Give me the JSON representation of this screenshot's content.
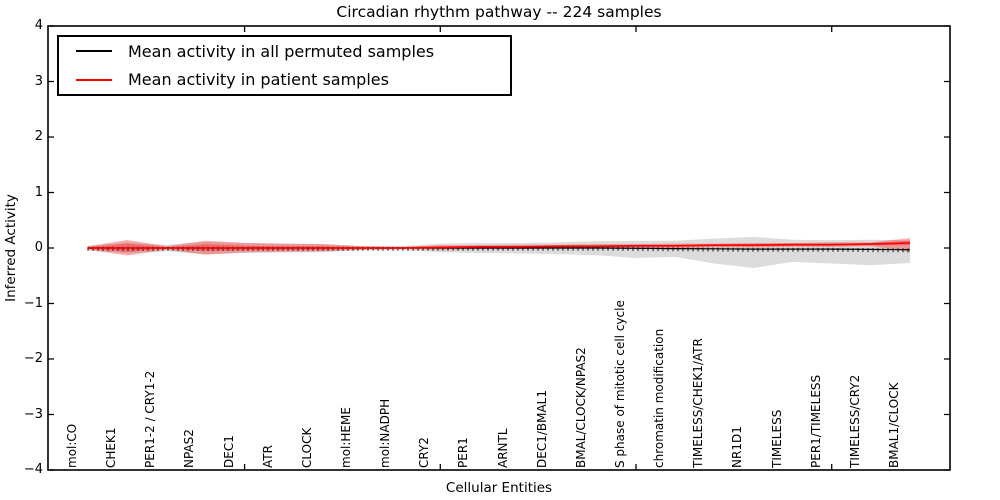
{
  "chart_data": {
    "type": "line",
    "title": "Circadian rhythm pathway -- 224 samples",
    "xlabel": "Cellular Entities",
    "ylabel": "Inferred Activity",
    "ylim": [
      -4,
      4
    ],
    "yticks": [
      4,
      3,
      2,
      1,
      0,
      -1,
      -2,
      -3,
      -4
    ],
    "yticklabels": [
      "4",
      "3",
      "2",
      "1",
      "0",
      "−1",
      "−2",
      "−3",
      "−4"
    ],
    "grid": false,
    "legend_position": "upper left",
    "x_major_tick_indices": [
      4,
      9,
      14,
      19
    ],
    "colors": {
      "frame": "#000000",
      "permuted_line": "#000000",
      "patient_line": "#ff0000",
      "permuted_band": "rgba(128,128,128,0.28)",
      "patient_band": "rgba(255,0,0,0.30)"
    },
    "categories": [
      "mol:CO",
      "CHEK1",
      "PER1-2 / CRY1-2",
      "NPAS2",
      "DEC1",
      "ATR",
      "CLOCK",
      "mol:HEME",
      "mol:NADPH",
      "CRY2",
      "PER1",
      "ARNTL",
      "DEC1/BMAL1",
      "BMAL/CLOCK/NPAS2",
      "S phase of mitotic cell cycle",
      "chromatin modification",
      "TIMELESS/CHEK1/ATR",
      "NR1D1",
      "TIMELESS",
      "PER1/TIMELESS",
      "TIMELESS/CRY2",
      "BMAL1/CLOCK"
    ],
    "series": [
      {
        "name": "Mean activity in all permuted samples",
        "color": "#000000",
        "values": [
          0,
          0,
          0,
          0,
          0,
          0,
          0,
          0,
          0,
          0,
          0,
          0,
          0,
          0,
          -0.005,
          -0.01,
          -0.015,
          -0.02,
          -0.02,
          -0.02,
          -0.025,
          -0.03
        ],
        "band_upper": [
          0.04,
          0.1,
          0.06,
          0.11,
          0.09,
          0.08,
          0.07,
          0.04,
          0.03,
          0.08,
          0.09,
          0.09,
          0.1,
          0.12,
          0.13,
          0.13,
          0.17,
          0.2,
          0.15,
          0.14,
          0.15,
          0.14
        ],
        "band_lower": [
          -0.04,
          -0.1,
          -0.06,
          -0.11,
          -0.09,
          -0.08,
          -0.08,
          -0.04,
          -0.03,
          -0.08,
          -0.09,
          -0.1,
          -0.11,
          -0.13,
          -0.18,
          -0.16,
          -0.28,
          -0.36,
          -0.25,
          -0.28,
          -0.31,
          -0.27
        ]
      },
      {
        "name": "Mean activity in patient samples",
        "color": "#ff0000",
        "values": [
          0,
          0,
          0,
          0,
          0,
          0,
          0,
          0,
          0,
          0.01,
          0.02,
          0.02,
          0.03,
          0.03,
          0.04,
          0.04,
          0.05,
          0.05,
          0.06,
          0.06,
          0.07,
          0.09
        ],
        "band_upper": [
          0.03,
          0.145,
          0.03,
          0.13,
          0.09,
          0.08,
          0.07,
          0.03,
          0.02,
          0.05,
          0.05,
          0.06,
          0.06,
          0.07,
          0.07,
          0.08,
          0.08,
          0.09,
          0.09,
          0.1,
          0.1,
          0.18
        ],
        "band_lower": [
          -0.03,
          -0.135,
          -0.03,
          -0.12,
          -0.08,
          -0.07,
          -0.06,
          -0.03,
          -0.02,
          -0.03,
          -0.02,
          -0.02,
          -0.01,
          -0.01,
          0.0,
          0.0,
          0.01,
          0.01,
          0.02,
          0.02,
          0.03,
          -0.07
        ],
        "inner_band_upper": [
          0.015,
          0.08,
          0.015,
          0.07,
          0.04,
          0.035,
          0.03,
          0.015,
          0.01,
          0.03,
          0.04,
          0.04,
          0.05,
          0.05,
          0.06,
          0.06,
          0.07,
          0.07,
          0.08,
          0.08,
          0.09,
          0.13
        ],
        "inner_band_lower": [
          -0.015,
          -0.07,
          -0.015,
          -0.06,
          -0.04,
          -0.035,
          -0.03,
          -0.015,
          -0.01,
          -0.01,
          0.0,
          0.0,
          0.01,
          0.01,
          0.02,
          0.02,
          0.03,
          0.03,
          0.04,
          0.04,
          0.05,
          0.05
        ]
      }
    ]
  }
}
